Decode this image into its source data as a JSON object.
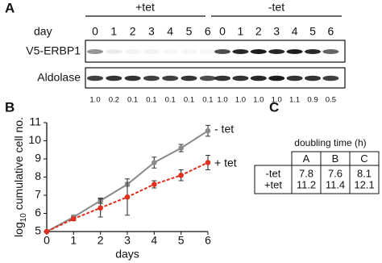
{
  "panel_labels": [
    "A",
    "B",
    "C"
  ],
  "blot": {
    "day_label": "day",
    "groups": [
      {
        "label": "+tet",
        "days": [
          "0",
          "1",
          "2",
          "3",
          "4",
          "5",
          "6"
        ]
      },
      {
        "label": "-tet",
        "days": [
          "0",
          "1",
          "2",
          "3",
          "4",
          "5",
          "6"
        ]
      }
    ],
    "rows": [
      "V5-ERBP1",
      "Aldolase"
    ],
    "quantification": [
      "1.0",
      "0.2",
      "0.1",
      "0.1",
      "0.1",
      "0.1",
      "0.1",
      "1.0",
      "1.0",
      "1.0",
      "1.0",
      "1.1",
      "0.9",
      "0.5"
    ]
  },
  "chart_data": {
    "type": "line",
    "ylabel": [
      "log",
      "10",
      " cumulative cell no."
    ],
    "xlabel": "days",
    "x": [
      0,
      1,
      2,
      3,
      4,
      5,
      6
    ],
    "xlim": [
      0,
      6
    ],
    "xticks": [
      0,
      1,
      2,
      3,
      4,
      5,
      6
    ],
    "ylim": [
      5,
      11
    ],
    "yticks": [
      5,
      6,
      7,
      8,
      9,
      10,
      11
    ],
    "series": [
      {
        "name": "- tet",
        "color": "#8a8a8a",
        "dashed": false,
        "values": [
          5,
          5.8,
          6.7,
          7.6,
          8.8,
          9.6,
          10.55
        ],
        "errors": [
          0,
          0.1,
          0.15,
          0.1,
          0.3,
          0.2,
          0.3
        ]
      },
      {
        "name": "+ tet",
        "color": "#e0301e",
        "dashed": true,
        "values": [
          5,
          5.7,
          6.3,
          6.9,
          7.6,
          8.1,
          8.8
        ],
        "errors": [
          0,
          0.1,
          0.5,
          1.0,
          0.2,
          0.3,
          0.4
        ]
      }
    ]
  },
  "table": {
    "title": "doubling time (h)",
    "header": [
      "A",
      "B",
      "C"
    ],
    "rows": [
      {
        "label": "-tet",
        "values": [
          7.8,
          7.6,
          8.1
        ]
      },
      {
        "label": "+tet",
        "values": [
          11.2,
          11.4,
          12.1
        ]
      }
    ]
  }
}
